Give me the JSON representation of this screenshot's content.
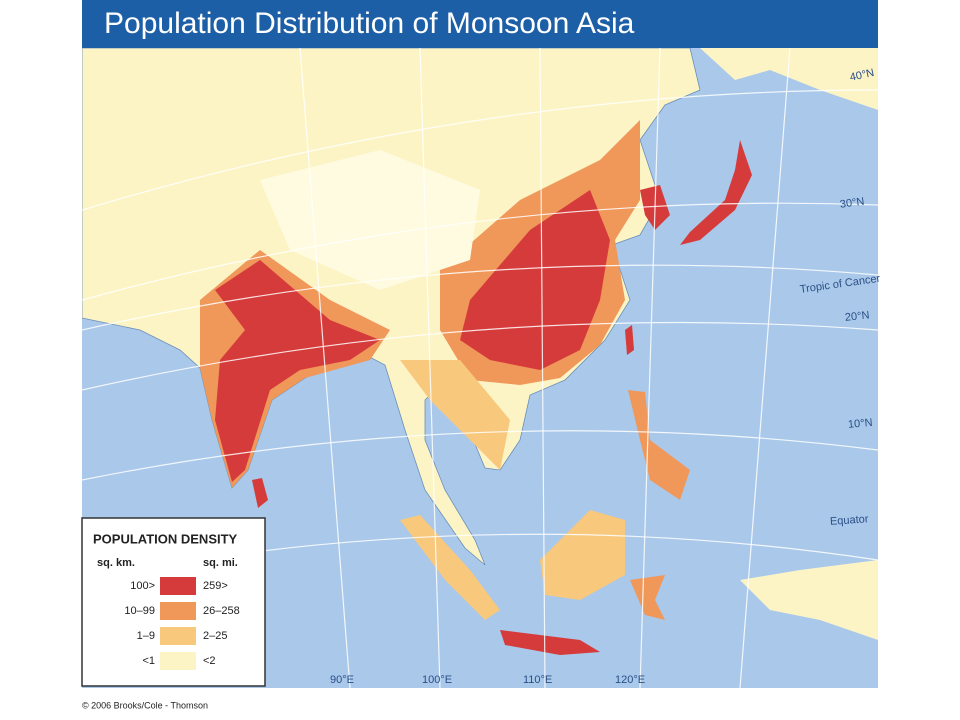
{
  "title": "Population Distribution of Monsoon Asia",
  "latitude_labels": [
    "40°N",
    "30°N",
    "Tropic of Cancer",
    "20°N",
    "10°N",
    "Equator"
  ],
  "longitude_labels": [
    "90°E",
    "100°E",
    "110°E",
    "120°E"
  ],
  "legend": {
    "title": "POPULATION DENSITY",
    "unit_km": "sq. km.",
    "unit_mi": "sq. mi.",
    "rows": [
      {
        "km": "100>",
        "mi": "259>",
        "color": "#d63b3b"
      },
      {
        "km": "10–99",
        "mi": "26–258",
        "color": "#f0975a"
      },
      {
        "km": "1–9",
        "mi": "2–25",
        "color": "#f8c87c"
      },
      {
        "km": "<1",
        "mi": "<2",
        "color": "#fdf4c6"
      }
    ]
  },
  "copyright": "© 2006 Brooks/Cole - Thomson"
}
